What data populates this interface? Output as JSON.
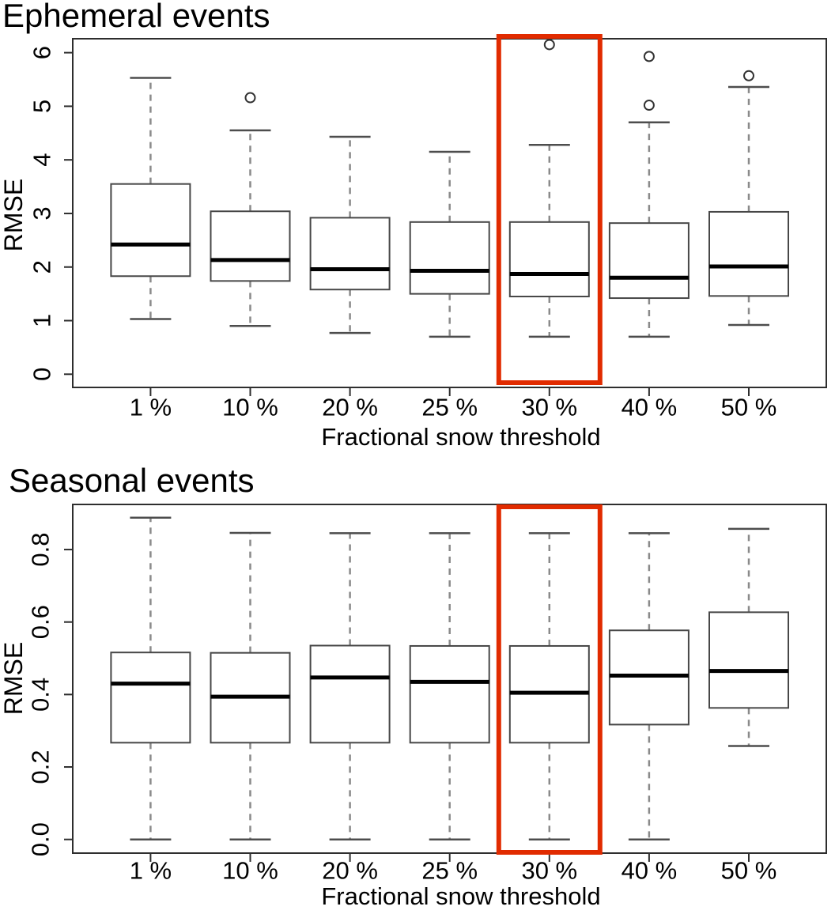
{
  "styles": {
    "highlight_color": "#e12b00",
    "axis_color": "#2e2e2e",
    "box_fill": "#ffffff",
    "box_border": "#474747",
    "median_color": "#000000",
    "whisker_color": "#8a8a8a",
    "staple_color": "#4d4d4d",
    "outlier_color": "#333333"
  },
  "chart_data": [
    {
      "type": "boxplot",
      "title": "Ephemeral events",
      "xlabel": "Fractional snow threshold",
      "ylabel": "RMSE",
      "categories": [
        "1 %",
        "10 %",
        "20 %",
        "25 %",
        "30 %",
        "40 %",
        "50 %"
      ],
      "yticks": [
        0,
        1,
        2,
        3,
        4,
        5,
        6
      ],
      "ytick_labels": [
        "0",
        "1",
        "2",
        "3",
        "4",
        "5",
        "6"
      ],
      "ylim": [
        -0.25,
        6.26
      ],
      "grid": false,
      "legend": "none",
      "highlight": {
        "category": "30 %"
      },
      "boxes": [
        {
          "category": "1 %",
          "whisker_low": 1.03,
          "q1": 1.83,
          "median": 2.42,
          "q3": 3.55,
          "whisker_high": 5.53,
          "outliers": []
        },
        {
          "category": "10 %",
          "whisker_low": 0.9,
          "q1": 1.74,
          "median": 2.13,
          "q3": 3.04,
          "whisker_high": 4.55,
          "outliers": [
            5.16
          ]
        },
        {
          "category": "20 %",
          "whisker_low": 0.77,
          "q1": 1.58,
          "median": 1.96,
          "q3": 2.92,
          "whisker_high": 4.43,
          "outliers": []
        },
        {
          "category": "25 %",
          "whisker_low": 0.7,
          "q1": 1.5,
          "median": 1.93,
          "q3": 2.84,
          "whisker_high": 4.15,
          "outliers": []
        },
        {
          "category": "30 %",
          "whisker_low": 0.7,
          "q1": 1.45,
          "median": 1.87,
          "q3": 2.84,
          "whisker_high": 4.28,
          "outliers": [
            6.15
          ]
        },
        {
          "category": "40 %",
          "whisker_low": 0.7,
          "q1": 1.42,
          "median": 1.8,
          "q3": 2.82,
          "whisker_high": 4.7,
          "outliers": [
            5.02,
            5.93
          ]
        },
        {
          "category": "50 %",
          "whisker_low": 0.92,
          "q1": 1.46,
          "median": 2.01,
          "q3": 3.03,
          "whisker_high": 5.36,
          "outliers": [
            5.57
          ]
        }
      ]
    },
    {
      "type": "boxplot",
      "title": "Seasonal events",
      "xlabel": "Fractional snow threshold",
      "ylabel": "RMSE",
      "categories": [
        "1 %",
        "10 %",
        "20 %",
        "25 %",
        "30 %",
        "40 %",
        "50 %"
      ],
      "yticks": [
        0,
        0.2,
        0.4,
        0.6,
        0.8
      ],
      "ytick_labels": [
        "0.0",
        "0.2",
        "0.4",
        "0.6",
        "0.8"
      ],
      "ylim": [
        -0.037,
        0.924
      ],
      "grid": false,
      "legend": "none",
      "highlight": {
        "category": "30 %"
      },
      "boxes": [
        {
          "category": "1 %",
          "whisker_low": 0.0,
          "q1": 0.267,
          "median": 0.43,
          "q3": 0.516,
          "whisker_high": 0.888,
          "outliers": []
        },
        {
          "category": "10 %",
          "whisker_low": 0.0,
          "q1": 0.267,
          "median": 0.394,
          "q3": 0.515,
          "whisker_high": 0.846,
          "outliers": []
        },
        {
          "category": "20 %",
          "whisker_low": 0.0,
          "q1": 0.267,
          "median": 0.447,
          "q3": 0.535,
          "whisker_high": 0.845,
          "outliers": []
        },
        {
          "category": "25 %",
          "whisker_low": 0.0,
          "q1": 0.267,
          "median": 0.435,
          "q3": 0.534,
          "whisker_high": 0.845,
          "outliers": []
        },
        {
          "category": "30 %",
          "whisker_low": 0.0,
          "q1": 0.267,
          "median": 0.405,
          "q3": 0.534,
          "whisker_high": 0.845,
          "outliers": []
        },
        {
          "category": "40 %",
          "whisker_low": 0.0,
          "q1": 0.317,
          "median": 0.452,
          "q3": 0.577,
          "whisker_high": 0.845,
          "outliers": []
        },
        {
          "category": "50 %",
          "whisker_low": 0.258,
          "q1": 0.363,
          "median": 0.465,
          "q3": 0.627,
          "whisker_high": 0.857,
          "outliers": []
        }
      ]
    }
  ]
}
